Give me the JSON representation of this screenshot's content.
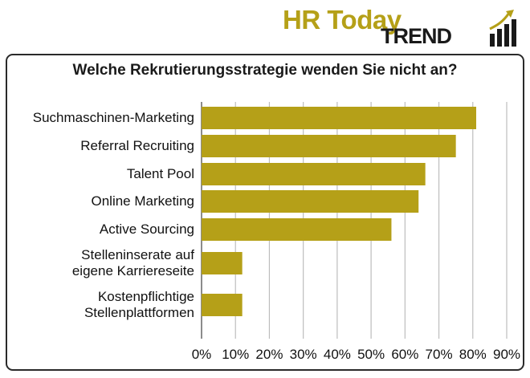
{
  "logo": {
    "line1": "HR Today",
    "line2": "TREND",
    "color_gold": "#b5a018",
    "color_dark": "#1a1a1a"
  },
  "chart_data": {
    "type": "bar",
    "orientation": "horizontal",
    "title": "Welche Rekrutierungsstrategie wenden Sie nicht an?",
    "categories": [
      [
        "Suchmaschinen-Marketing"
      ],
      [
        "Referral Recruiting"
      ],
      [
        "Talent Pool"
      ],
      [
        "Online Marketing"
      ],
      [
        "Active Sourcing"
      ],
      [
        "Stelleninserate auf",
        "eigene Karriereseite"
      ],
      [
        "Kostenpflichtige",
        "Stellenplattformen"
      ]
    ],
    "values": [
      81,
      75,
      66,
      64,
      56,
      12,
      12
    ],
    "xlim": [
      0,
      90
    ],
    "xticks": [
      "0%",
      "10%",
      "20%",
      "30%",
      "40%",
      "50%",
      "60%",
      "70%",
      "80%",
      "90%"
    ],
    "bar_color": "#b5a018",
    "grid": true
  }
}
